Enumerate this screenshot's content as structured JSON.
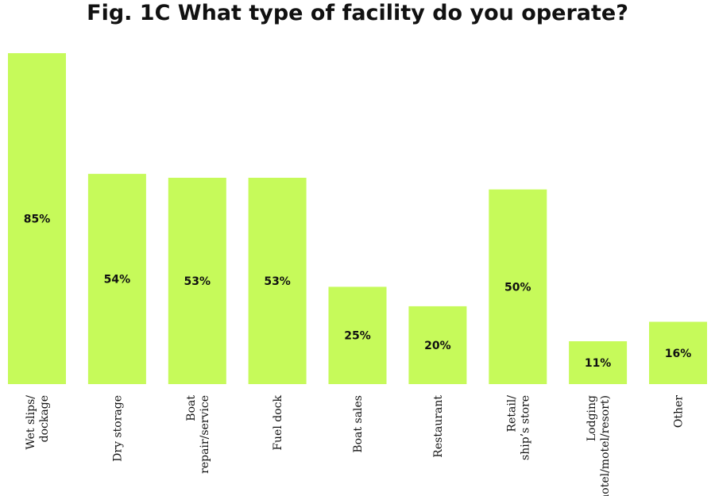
{
  "chart_data": {
    "type": "bar",
    "title": "Fig. 1C What type of facility do you operate?",
    "xlabel": "",
    "ylabel": "",
    "ylim": [
      0,
      85
    ],
    "grid": false,
    "legend": "none",
    "value_suffix": "%",
    "categories": [
      [
        "Wet slips/",
        "dockage"
      ],
      [
        "Dry storage"
      ],
      [
        "Boat",
        "repair/service"
      ],
      [
        "Fuel dock"
      ],
      [
        "Boat sales"
      ],
      [
        "Restaurant"
      ],
      [
        "Retail/",
        "ship’s store"
      ],
      [
        "Lodging",
        "(hotel/motel/resort)"
      ],
      [
        "Other"
      ]
    ],
    "values": [
      85,
      54,
      53,
      53,
      25,
      20,
      50,
      11,
      16
    ],
    "data_labels": [
      "85%",
      "54%",
      "53%",
      "53%",
      "25%",
      "20%",
      "50%",
      "11%",
      "16%"
    ],
    "bar_color": "#c6fa5a"
  }
}
